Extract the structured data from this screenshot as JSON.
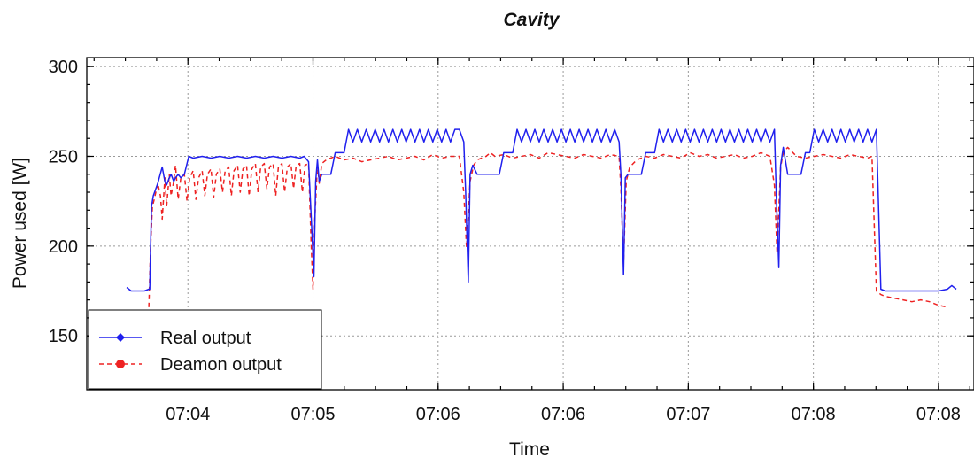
{
  "chart_data": {
    "type": "line",
    "title": "Cavity",
    "xlabel": "Time",
    "ylabel": "Power used  [W]",
    "ylim": [
      120,
      305
    ],
    "xlim": [
      0,
      1000
    ],
    "yticks": [
      150,
      200,
      250,
      300
    ],
    "grid": true,
    "legend_position": "bottom-left",
    "xticks": [
      {
        "pos": 114,
        "label": "07:04"
      },
      {
        "pos": 255,
        "label": "07:05"
      },
      {
        "pos": 396,
        "label": "07:06"
      },
      {
        "pos": 537,
        "label": "07:06"
      },
      {
        "pos": 678,
        "label": "07:07"
      },
      {
        "pos": 819,
        "label": "07:08"
      },
      {
        "pos": 960,
        "label": "07:08"
      }
    ],
    "series": [
      {
        "name": "Real output",
        "color": "#2020ee",
        "style": "solid",
        "x": [
          45,
          50,
          55,
          60,
          65,
          70,
          71,
          72,
          73,
          75,
          80,
          85,
          88,
          90,
          93,
          95,
          98,
          100,
          103,
          106,
          110,
          115,
          120,
          130,
          140,
          150,
          160,
          170,
          180,
          190,
          200,
          210,
          220,
          230,
          240,
          245,
          250,
          255,
          256,
          258,
          260,
          262,
          265,
          270,
          275,
          280,
          285,
          290,
          295,
          300,
          305,
          310,
          315,
          320,
          325,
          330,
          335,
          340,
          345,
          350,
          355,
          360,
          365,
          370,
          375,
          380,
          385,
          390,
          395,
          400,
          405,
          410,
          415,
          420,
          425,
          427,
          430,
          432,
          435,
          440,
          445,
          450,
          455,
          460,
          465,
          470,
          475,
          480,
          485,
          490,
          495,
          500,
          505,
          510,
          515,
          520,
          525,
          530,
          535,
          540,
          545,
          550,
          555,
          560,
          565,
          570,
          575,
          580,
          585,
          590,
          595,
          600,
          602,
          605,
          607,
          610,
          615,
          620,
          625,
          630,
          635,
          640,
          645,
          650,
          655,
          660,
          665,
          670,
          675,
          680,
          685,
          690,
          695,
          700,
          705,
          710,
          715,
          720,
          725,
          730,
          735,
          740,
          745,
          750,
          755,
          760,
          765,
          770,
          775,
          777,
          780,
          782,
          785,
          790,
          795,
          800,
          805,
          810,
          815,
          820,
          825,
          830,
          835,
          840,
          845,
          850,
          855,
          860,
          865,
          870,
          875,
          880,
          885,
          890,
          895,
          900,
          920,
          940,
          960,
          970,
          975,
          980
        ],
        "y": [
          177,
          175,
          175,
          175,
          175,
          176,
          176,
          200,
          222,
          228,
          235,
          244,
          236,
          234,
          238,
          240,
          236,
          238,
          240,
          238,
          240,
          250,
          249,
          250,
          249,
          250,
          249,
          250,
          249,
          250,
          249,
          250,
          249,
          250,
          249,
          250,
          247,
          195,
          183,
          236,
          248,
          236,
          240,
          240,
          240,
          252,
          252,
          252,
          265,
          258,
          265,
          258,
          265,
          258,
          265,
          258,
          265,
          258,
          265,
          258,
          265,
          258,
          265,
          258,
          265,
          258,
          265,
          258,
          265,
          258,
          265,
          258,
          265,
          265,
          258,
          230,
          180,
          240,
          245,
          240,
          240,
          240,
          240,
          240,
          240,
          252,
          252,
          252,
          265,
          258,
          265,
          258,
          265,
          258,
          265,
          258,
          265,
          258,
          265,
          258,
          265,
          258,
          265,
          258,
          265,
          258,
          265,
          258,
          265,
          258,
          265,
          258,
          240,
          184,
          238,
          240,
          240,
          240,
          240,
          252,
          252,
          252,
          265,
          258,
          265,
          258,
          265,
          258,
          265,
          258,
          265,
          258,
          265,
          258,
          265,
          258,
          265,
          258,
          265,
          258,
          265,
          258,
          265,
          258,
          265,
          258,
          265,
          258,
          265,
          230,
          188,
          245,
          255,
          240,
          240,
          240,
          240,
          252,
          252,
          265,
          258,
          265,
          258,
          265,
          258,
          265,
          258,
          265,
          258,
          265,
          258,
          265,
          258,
          265,
          176,
          175,
          175,
          175,
          175,
          176,
          178,
          176
        ]
      },
      {
        "name": "Deamon output",
        "color": "#ee2222",
        "style": "dashed",
        "x": [
          70,
          72,
          74,
          76,
          80,
          83,
          85,
          88,
          90,
          93,
          95,
          98,
          100,
          103,
          106,
          110,
          113,
          116,
          120,
          123,
          126,
          130,
          133,
          136,
          140,
          143,
          146,
          150,
          153,
          156,
          160,
          163,
          166,
          170,
          173,
          176,
          180,
          183,
          186,
          190,
          193,
          196,
          200,
          203,
          206,
          210,
          213,
          216,
          220,
          223,
          226,
          230,
          233,
          236,
          240,
          243,
          246,
          250,
          253,
          255,
          257,
          260,
          262,
          265,
          270,
          280,
          290,
          300,
          310,
          320,
          330,
          340,
          350,
          360,
          370,
          380,
          390,
          400,
          410,
          420,
          425,
          428,
          432,
          436,
          440,
          450,
          455,
          460,
          470,
          480,
          490,
          500,
          510,
          520,
          530,
          540,
          550,
          560,
          570,
          580,
          590,
          600,
          602,
          605,
          608,
          612,
          620,
          630,
          640,
          650,
          660,
          670,
          680,
          690,
          700,
          710,
          720,
          730,
          740,
          750,
          760,
          770,
          775,
          778,
          782,
          785,
          790,
          800,
          810,
          820,
          830,
          840,
          850,
          860,
          870,
          880,
          885,
          890,
          895,
          900,
          910,
          920,
          930,
          940,
          950,
          960,
          970
        ],
        "y": [
          166,
          200,
          222,
          226,
          235,
          228,
          215,
          238,
          222,
          240,
          228,
          236,
          245,
          226,
          238,
          240,
          225,
          238,
          242,
          226,
          238,
          242,
          228,
          240,
          243,
          227,
          240,
          243,
          230,
          242,
          244,
          228,
          242,
          245,
          230,
          243,
          245,
          228,
          243,
          246,
          230,
          244,
          246,
          232,
          244,
          246,
          228,
          244,
          246,
          230,
          244,
          246,
          232,
          245,
          246,
          230,
          245,
          246,
          200,
          176,
          215,
          245,
          235,
          246,
          248,
          250,
          248,
          249,
          247,
          248,
          249,
          250,
          248,
          249,
          250,
          248,
          251,
          249,
          250,
          250,
          230,
          199,
          236,
          245,
          248,
          250,
          252,
          250,
          251,
          249,
          250,
          251,
          249,
          252,
          251,
          250,
          249,
          251,
          250,
          249,
          251,
          250,
          232,
          190,
          236,
          244,
          248,
          250,
          249,
          251,
          250,
          249,
          252,
          250,
          251,
          249,
          250,
          251,
          249,
          250,
          252,
          250,
          234,
          196,
          244,
          252,
          255,
          250,
          249,
          250,
          251,
          250,
          249,
          251,
          250,
          249,
          250,
          175,
          173,
          172,
          171,
          170,
          169,
          170,
          169,
          167,
          166
        ]
      }
    ]
  }
}
